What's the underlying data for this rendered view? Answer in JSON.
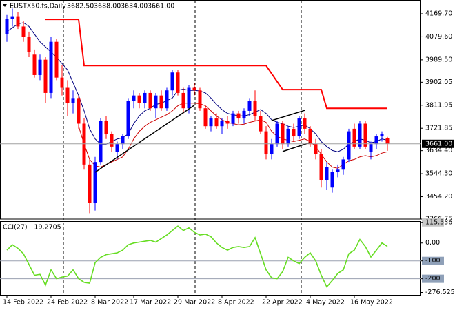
{
  "chart_data": [
    {
      "type": "candlestick",
      "title": "EUSTX50.fs,Daily",
      "ohlc_labels": [
        "3682.50",
        "3688.00",
        "3634.00",
        "3661.00"
      ],
      "open": [
        4090,
        4150,
        4160,
        4120,
        4080,
        4010,
        3930,
        3990,
        3860,
        4060,
        3920,
        3880,
        3820,
        3840,
        3740,
        3580,
        3430,
        3590,
        3750,
        3700,
        3630,
        3660,
        3690,
        3830,
        3850,
        3820,
        3860,
        3800,
        3850,
        3800,
        3870,
        3940,
        3860,
        3800,
        3880,
        3870,
        3800,
        3730,
        3760,
        3730,
        3750,
        3740,
        3780,
        3760,
        3790,
        3830,
        3770,
        3710,
        3620,
        3660,
        3740,
        3660,
        3720,
        3690,
        3760,
        3720,
        3660,
        3620,
        3520,
        3490,
        3550,
        3560,
        3600,
        3720,
        3650,
        3740,
        3630,
        3660,
        3690,
        3682.5
      ],
      "high": [
        4165,
        4190,
        4175,
        4140,
        4100,
        4030,
        4010,
        4000,
        4080,
        4070,
        3970,
        3910,
        3870,
        3850,
        3760,
        3600,
        3610,
        3760,
        3770,
        3710,
        3670,
        3700,
        3840,
        3870,
        3860,
        3870,
        3870,
        3860,
        3870,
        3880,
        3950,
        3950,
        3880,
        3890,
        3900,
        3880,
        3810,
        3770,
        3780,
        3760,
        3770,
        3790,
        3790,
        3800,
        3840,
        3870,
        3790,
        3730,
        3680,
        3750,
        3750,
        3730,
        3740,
        3770,
        3780,
        3730,
        3680,
        3640,
        3590,
        3560,
        3580,
        3610,
        3720,
        3740,
        3750,
        3750,
        3670,
        3700,
        3710,
        3688
      ],
      "low": [
        4060,
        4120,
        4110,
        4060,
        4000,
        3920,
        3910,
        3820,
        3840,
        3910,
        3850,
        3770,
        3780,
        3720,
        3560,
        3390,
        3400,
        3580,
        3680,
        3630,
        3600,
        3640,
        3680,
        3800,
        3800,
        3800,
        3790,
        3760,
        3790,
        3790,
        3850,
        3850,
        3780,
        3780,
        3850,
        3790,
        3720,
        3710,
        3720,
        3700,
        3720,
        3730,
        3740,
        3740,
        3770,
        3750,
        3700,
        3600,
        3600,
        3650,
        3640,
        3650,
        3670,
        3680,
        3700,
        3650,
        3600,
        3490,
        3480,
        3470,
        3530,
        3540,
        3590,
        3640,
        3640,
        3640,
        3600,
        3640,
        3670,
        3634
      ],
      "close": [
        4150,
        4160,
        4120,
        4080,
        4020,
        3930,
        3990,
        3860,
        4060,
        3920,
        3880,
        3820,
        3840,
        3740,
        3580,
        3430,
        3590,
        3750,
        3700,
        3650,
        3660,
        3690,
        3830,
        3850,
        3820,
        3860,
        3800,
        3850,
        3800,
        3870,
        3940,
        3860,
        3800,
        3880,
        3870,
        3800,
        3730,
        3760,
        3730,
        3750,
        3740,
        3780,
        3760,
        3790,
        3830,
        3770,
        3710,
        3620,
        3660,
        3740,
        3660,
        3720,
        3690,
        3760,
        3720,
        3660,
        3620,
        3520,
        3570,
        3550,
        3560,
        3600,
        3710,
        3650,
        3740,
        3650,
        3660,
        3690,
        3700,
        3661
      ],
      "colors": {
        "up": "#0000ff",
        "down": "#ff0000"
      },
      "xlim": [
        -1.25,
        75
      ],
      "xticks": [
        {
          "value": 0,
          "label": "14 Feb 2022"
        },
        {
          "value": 8,
          "label": "24 Feb 2022"
        },
        {
          "value": 16,
          "label": "8 Mar 2022"
        },
        {
          "value": 23,
          "label": "17 Mar 2022"
        },
        {
          "value": 31,
          "label": "29 Mar 2022"
        },
        {
          "value": 39,
          "label": "8 Apr 2022"
        },
        {
          "value": 47,
          "label": "22 Apr 2022"
        },
        {
          "value": 55,
          "label": "4 May 2022"
        },
        {
          "value": 63,
          "label": "16 May 2022"
        }
      ],
      "ylim": [
        3366.75,
        4218.2
      ],
      "yticks": [
        {
          "value": 4169.7,
          "label": "4169.70"
        },
        {
          "value": 4079.6,
          "label": "4079.60"
        },
        {
          "value": 3989.5,
          "label": "3989.50"
        },
        {
          "value": 3902.05,
          "label": "3902.05"
        },
        {
          "value": 3811.95,
          "label": "3811.95"
        },
        {
          "value": 3721.85,
          "label": "3721.85"
        },
        {
          "value": 3634.4,
          "label": "3634.40"
        },
        {
          "value": 3544.3,
          "label": "3544.30"
        },
        {
          "value": 3454.2,
          "label": "3454.20"
        },
        {
          "value": 3366.75,
          "label": "3366.75"
        }
      ],
      "last_price_label": "3661.00",
      "overlays": [
        {
          "color": "#00007f",
          "values": [
            4100,
            4115,
            4130,
            4135,
            4120,
            4090,
            4060,
            4040,
            4020,
            4000,
            3975,
            3950,
            3900,
            3850,
            3790,
            3720,
            3680,
            3660,
            3660,
            3670,
            3680,
            3685,
            3700,
            3740,
            3770,
            3790,
            3800,
            3815,
            3820,
            3830,
            3840,
            3870,
            3875,
            3870,
            3870,
            3868,
            3860,
            3840,
            3815,
            3795,
            3780,
            3775,
            3770,
            3770,
            3775,
            3785,
            3795,
            3780,
            3755,
            3745,
            3740,
            3730,
            3725,
            3730,
            3735,
            3720,
            3700,
            3670,
            3650,
            3635,
            3630,
            3640,
            3660,
            3670,
            3680,
            3675,
            3665,
            3670,
            3680,
            3675
          ]
        },
        {
          "color": "#cc0000",
          "values": [
            null,
            null,
            null,
            null,
            null,
            null,
            null,
            null,
            null,
            null,
            null,
            null,
            null,
            3730,
            3660,
            3600,
            3575,
            3570,
            3580,
            3590,
            3600,
            3610,
            3640,
            3680,
            3710,
            3730,
            3745,
            3755,
            3765,
            3775,
            3790,
            3810,
            3820,
            3820,
            3820,
            3818,
            3810,
            3790,
            3770,
            3755,
            3745,
            3740,
            3735,
            3738,
            3745,
            3750,
            3755,
            3745,
            3710,
            3690,
            3680,
            3675,
            3670,
            3675,
            3680,
            3670,
            3650,
            3620,
            3590,
            3570,
            3565,
            3580,
            3595,
            3600,
            3610,
            3615,
            3610,
            3615,
            3625,
            3630
          ]
        }
      ],
      "step_line": {
        "color": "#ff0000",
        "x": [
          7,
          13,
          14,
          47,
          50,
          57,
          58,
          69
        ],
        "values": [
          4148,
          4148,
          3967,
          3967,
          3873,
          3873,
          3800,
          3800
        ]
      },
      "trendlines": [
        {
          "x": [
            16,
            34
          ],
          "values": [
            3550,
            3812
          ]
        },
        {
          "x": [
            48,
            54
          ],
          "values": [
            3752,
            3792
          ]
        },
        {
          "x": [
            50,
            55
          ],
          "values": [
            3631,
            3666
          ]
        }
      ]
    },
    {
      "type": "line",
      "title": "CCI(27)",
      "color": "#66dd22",
      "values": [
        -40,
        -10,
        -30,
        -60,
        -120,
        -180,
        -175,
        -235,
        -150,
        -200,
        -190,
        -185,
        -150,
        -200,
        -220,
        -225,
        -110,
        -80,
        -65,
        -60,
        -55,
        -40,
        -10,
        0,
        5,
        10,
        15,
        5,
        25,
        45,
        70,
        95,
        70,
        85,
        60,
        45,
        50,
        35,
        0,
        -25,
        -40,
        -25,
        -20,
        -25,
        -20,
        30,
        -60,
        -150,
        -195,
        -200,
        -160,
        -80,
        -100,
        -115,
        -80,
        -55,
        -100,
        -180,
        -245,
        -210,
        -170,
        -150,
        -60,
        -40,
        20,
        -20,
        -78,
        -40,
        0,
        -19.2705
      ],
      "ylim": [
        -290,
        118.5
      ],
      "yticks": [
        115.536,
        {
          "value": 0,
          "label": "0.00"
        },
        -100,
        -200,
        -276.5253
      ],
      "levels": [
        -100,
        -200
      ]
    }
  ]
}
